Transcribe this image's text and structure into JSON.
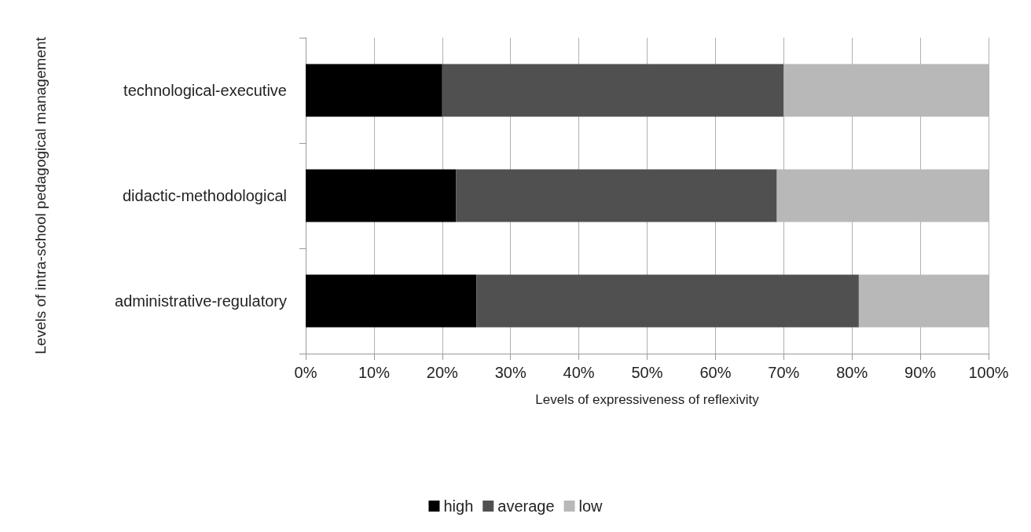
{
  "chart_data": {
    "type": "bar",
    "orientation": "horizontal",
    "stacked": true,
    "xlabel": "Levels of expressiveness of reflexivity",
    "ylabel": "Levels of intra-school pedagogical management",
    "categories": [
      "technological-executive",
      "didactic-methodological",
      "administrative-regulatory"
    ],
    "series": [
      {
        "name": "high",
        "color": "#000000",
        "values": [
          20,
          22,
          25
        ]
      },
      {
        "name": "average",
        "color": "#505050",
        "values": [
          50,
          47,
          56
        ]
      },
      {
        "name": "low",
        "color": "#b8b8b8",
        "values": [
          30,
          31,
          19
        ]
      }
    ],
    "xlim": [
      0,
      100
    ],
    "xticks": [
      {
        "value": 0,
        "label": "0%"
      },
      {
        "value": 10,
        "label": "10%"
      },
      {
        "value": 20,
        "label": "20%"
      },
      {
        "value": 30,
        "label": "30%"
      },
      {
        "value": 40,
        "label": "40%"
      },
      {
        "value": 50,
        "label": "50%"
      },
      {
        "value": 60,
        "label": "60%"
      },
      {
        "value": 70,
        "label": "70%"
      },
      {
        "value": 80,
        "label": "80%"
      },
      {
        "value": 90,
        "label": "90%"
      },
      {
        "value": 100,
        "label": "100%"
      }
    ],
    "grid": "x",
    "legend": "bottom"
  }
}
